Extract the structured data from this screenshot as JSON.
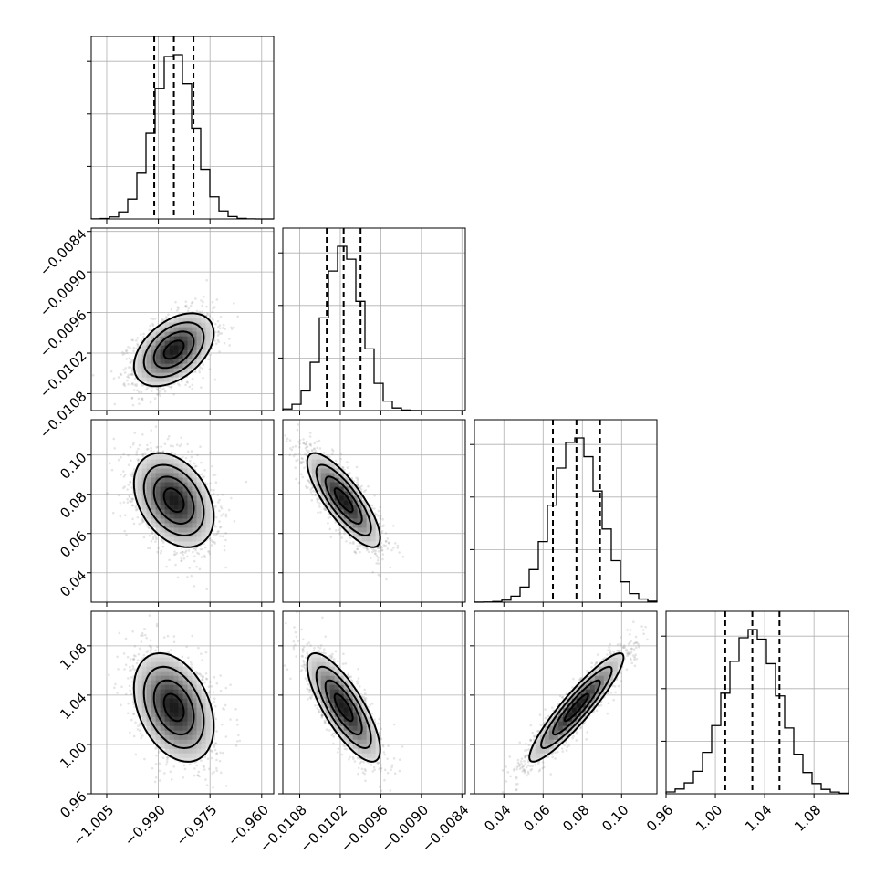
{
  "chart_data": {
    "type": "corner",
    "title": "",
    "grid": true,
    "params": [
      {
        "mean": -0.9855,
        "sd": 0.0058,
        "range": [
          -1.0095,
          -0.9565
        ],
        "ticks": [
          -1.005,
          -0.99,
          -0.975,
          -0.96
        ],
        "tick_labels": [
          "−1.005",
          "−0.990",
          "−0.975",
          "−0.960"
        ],
        "quantiles": [
          -0.9912,
          -0.9855,
          -0.9798
        ]
      },
      {
        "mean": -0.01015,
        "sd": 0.00027,
        "range": [
          -0.01105,
          -0.00835
        ],
        "ticks": [
          -0.0108,
          -0.0102,
          -0.0096,
          -0.009,
          -0.0084
        ],
        "tick_labels": [
          "−0.0108",
          "−0.0102",
          "−0.0096",
          "−0.0090",
          "−0.0084"
        ],
        "quantiles": [
          -0.0104,
          -0.01015,
          -0.0099
        ]
      },
      {
        "mean": 0.077,
        "sd": 0.012,
        "range": [
          0.025,
          0.118
        ],
        "ticks": [
          0.04,
          0.06,
          0.08,
          0.1
        ],
        "tick_labels": [
          "0.04",
          "0.06",
          "0.08",
          "0.10"
        ],
        "quantiles": [
          0.065,
          0.077,
          0.089
        ]
      },
      {
        "mean": 1.03,
        "sd": 0.022,
        "range": [
          0.96,
          1.108
        ],
        "ticks": [
          0.96,
          1.0,
          1.04,
          1.08
        ],
        "tick_labels": [
          "0.96",
          "1.00",
          "1.04",
          "1.08"
        ],
        "quantiles": [
          1.008,
          1.03,
          1.052
        ]
      }
    ],
    "correlations": [
      [
        1.0,
        0.45,
        -0.35,
        -0.35
      ],
      [
        0.45,
        1.0,
        -0.8,
        -0.78
      ],
      [
        -0.35,
        -0.8,
        1.0,
        0.92
      ],
      [
        -0.35,
        -0.78,
        0.92,
        1.0
      ]
    ],
    "quantile_levels": [
      0.16,
      0.5,
      0.84
    ],
    "contour_levels_sigma": [
      0.5,
      1.0,
      1.5,
      2.0
    ],
    "n_bins": 20,
    "n_samples_drawn": 1800
  }
}
